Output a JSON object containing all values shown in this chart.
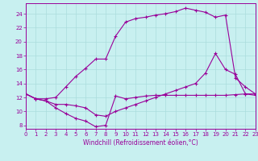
{
  "xlabel": "Windchill (Refroidissement éolien,°C)",
  "bg_color": "#c8f0f0",
  "line_color": "#990099",
  "grid_color": "#aadddd",
  "curve1_x": [
    0,
    1,
    2,
    3,
    4,
    5,
    6,
    7,
    8,
    9,
    10,
    11,
    12,
    13,
    14,
    15,
    16,
    17,
    18,
    19,
    20,
    21,
    22,
    23
  ],
  "curve1_y": [
    12.5,
    11.8,
    11.5,
    10.5,
    9.7,
    9.0,
    8.6,
    7.8,
    8.0,
    12.2,
    11.8,
    12.0,
    12.2,
    12.3,
    12.3,
    12.3,
    12.3,
    12.3,
    12.3,
    12.3,
    12.3,
    12.4,
    12.5,
    12.5
  ],
  "curve2_x": [
    0,
    1,
    2,
    3,
    4,
    5,
    6,
    7,
    8,
    9,
    10,
    11,
    12,
    13,
    14,
    15,
    16,
    17,
    18,
    19,
    20,
    21,
    22,
    23
  ],
  "curve2_y": [
    12.5,
    11.8,
    11.8,
    12.0,
    13.5,
    15.0,
    16.2,
    17.5,
    17.5,
    20.8,
    22.8,
    23.3,
    23.5,
    23.8,
    24.0,
    24.3,
    24.8,
    24.5,
    24.2,
    23.5,
    23.8,
    14.8,
    13.5,
    12.5
  ],
  "curve3_x": [
    0,
    1,
    2,
    3,
    4,
    5,
    6,
    7,
    8,
    9,
    10,
    11,
    12,
    13,
    14,
    15,
    16,
    17,
    18,
    19,
    20,
    21,
    22,
    23
  ],
  "curve3_y": [
    12.5,
    11.8,
    11.5,
    11.0,
    11.0,
    10.8,
    10.5,
    9.5,
    9.3,
    10.0,
    10.5,
    11.0,
    11.5,
    12.0,
    12.5,
    13.0,
    13.5,
    14.0,
    15.5,
    18.3,
    16.0,
    15.3,
    12.5,
    12.3
  ],
  "xlim": [
    0,
    23
  ],
  "ylim": [
    7.5,
    25.5
  ],
  "yticks": [
    8,
    10,
    12,
    14,
    16,
    18,
    20,
    22,
    24
  ],
  "xticks": [
    0,
    1,
    2,
    3,
    4,
    5,
    6,
    7,
    8,
    9,
    10,
    11,
    12,
    13,
    14,
    15,
    16,
    17,
    18,
    19,
    20,
    21,
    22,
    23
  ]
}
